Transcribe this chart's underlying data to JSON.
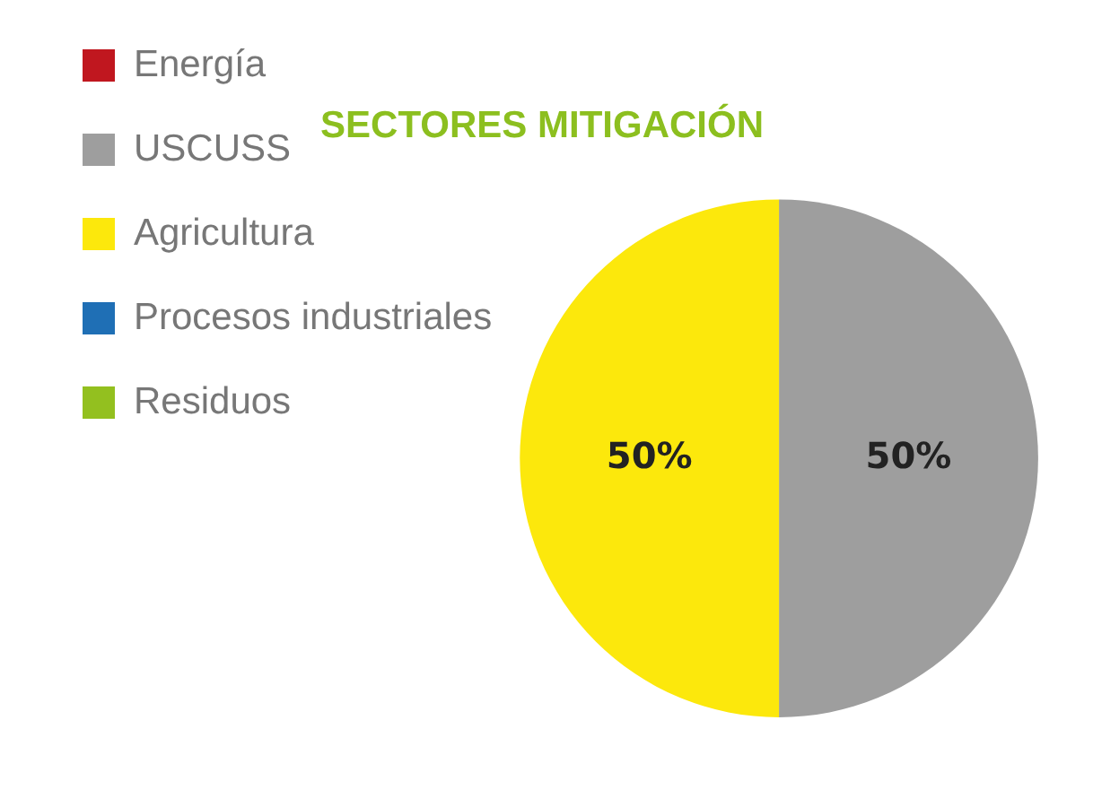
{
  "chart_data": {
    "type": "pie",
    "title": "SECTORES MITIGACIÓN",
    "categories": [
      "Energía",
      "USCUSS",
      "Agricultura",
      "Procesos industriales",
      "Residuos"
    ],
    "values": [
      0,
      50,
      50,
      0,
      0
    ],
    "colors": [
      "#c0171f",
      "#9e9e9e",
      "#fce80c",
      "#1f6fb5",
      "#93c01f"
    ],
    "value_labels": [
      null,
      "50%",
      "50%",
      null,
      null
    ],
    "legend": "left"
  }
}
